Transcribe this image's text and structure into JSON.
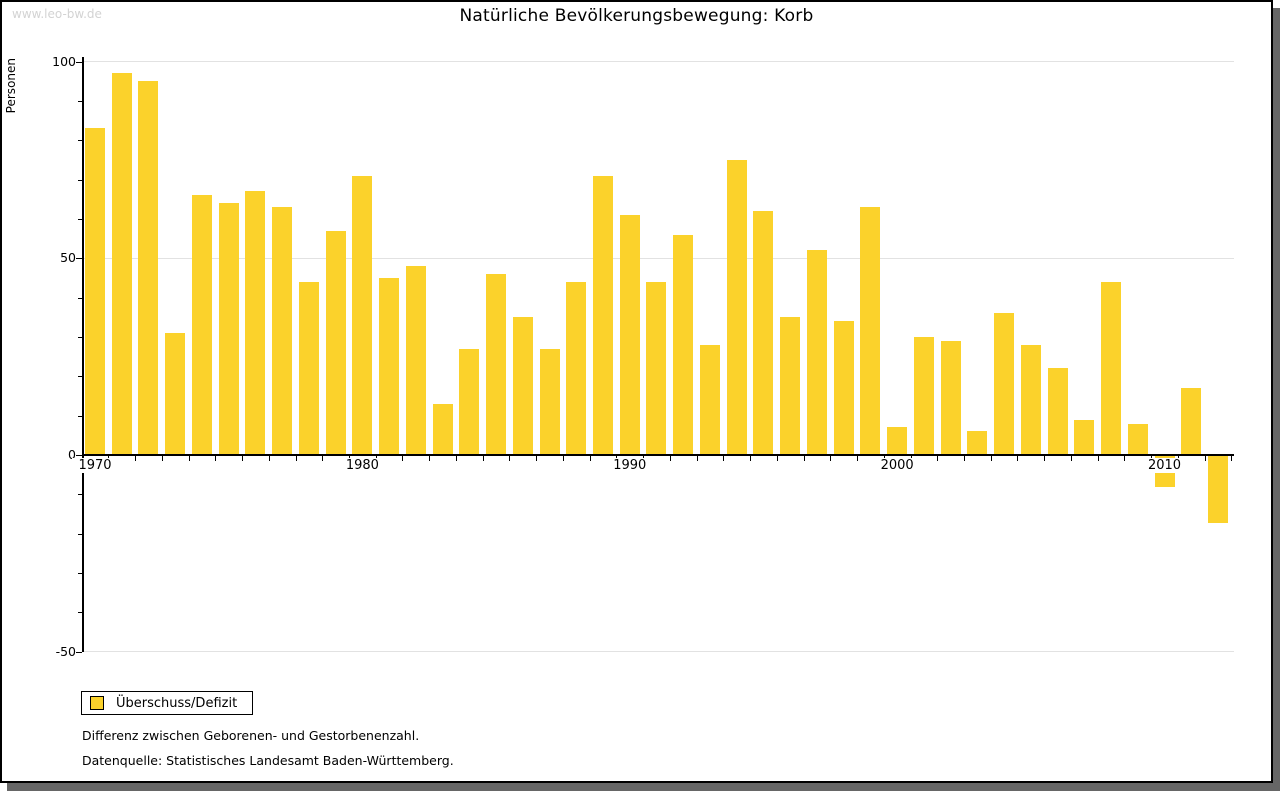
{
  "watermark": "www.leo-bw.de",
  "title": "Natürliche Bevölkerungsbewegung: Korb",
  "legend": {
    "label": "Überschuss/Defizit"
  },
  "footnotes": [
    "Differenz zwischen Geborenen- und Gestorbenenzahl.",
    "Datenquelle: Statistisches Landesamt Baden-Württemberg."
  ],
  "colors": {
    "bar": "#fbd22b",
    "grid": "#e2e2e2",
    "axis": "#000000",
    "watermark": "#d3d3d3",
    "shadow": "#666666",
    "background": "#ffffff"
  },
  "chart_data": {
    "type": "bar",
    "title": "Natürliche Bevölkerungsbewegung: Korb",
    "xlabel": "",
    "ylabel": "Personen",
    "ylim": [
      -50,
      100
    ],
    "grid": true,
    "legend_position": "bottom-left",
    "series_name": "Überschuss/Defizit",
    "y_major_ticks": [
      100,
      50,
      0,
      -50
    ],
    "y_gridline_values": [
      100,
      50,
      -50
    ],
    "y_minor_step": 10,
    "x_labeled_years": [
      1970,
      1980,
      1990,
      2000,
      2010
    ],
    "categories": [
      1970,
      1971,
      1972,
      1973,
      1974,
      1975,
      1976,
      1977,
      1978,
      1979,
      1980,
      1981,
      1982,
      1983,
      1984,
      1985,
      1986,
      1987,
      1988,
      1989,
      1990,
      1991,
      1992,
      1993,
      1994,
      1995,
      1996,
      1997,
      1998,
      1999,
      2000,
      2001,
      2002,
      2003,
      2004,
      2005,
      2006,
      2007,
      2008,
      2009,
      2010,
      2011,
      2012
    ],
    "values": [
      83,
      97,
      95,
      31,
      66,
      64,
      67,
      63,
      44,
      57,
      71,
      45,
      48,
      13,
      27,
      46,
      35,
      27,
      44,
      71,
      61,
      44,
      56,
      28,
      75,
      62,
      35,
      52,
      34,
      63,
      7,
      30,
      29,
      6,
      36,
      28,
      22,
      9,
      44,
      8,
      -8,
      17,
      -17
    ]
  }
}
